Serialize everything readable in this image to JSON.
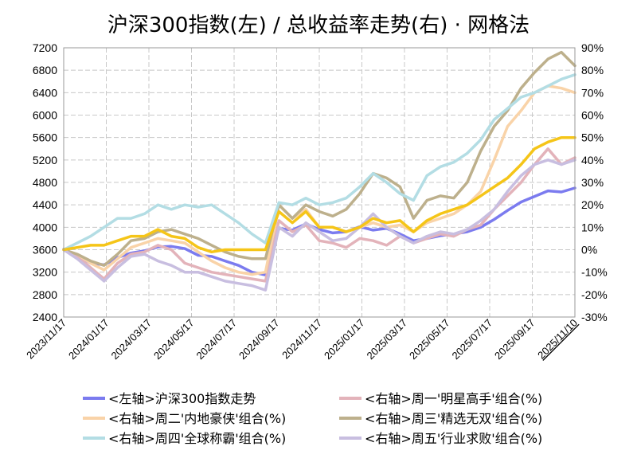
{
  "chart_data": {
    "type": "line",
    "title": "沪深300指数(左)  /  总收益率走势(右) · 网格法",
    "grid": true,
    "legend_placement": "bottom",
    "left_axis": {
      "ylim": [
        2400,
        7200
      ],
      "ticks": [
        "7200",
        "6800",
        "6400",
        "6000",
        "5600",
        "5200",
        "4800",
        "4400",
        "4000",
        "3600",
        "3200",
        "2800",
        "2400"
      ]
    },
    "right_axis": {
      "ylim": [
        -30,
        90
      ],
      "unit": "%",
      "ticks": [
        "90%",
        "80%",
        "70%",
        "60%",
        "50%",
        "40%",
        "30%",
        "20%",
        "10%",
        "0%",
        "-10%",
        "-20%",
        "-30%"
      ],
      "negative_tick_color": "#00cc00"
    },
    "x_ticks": [
      "2023/11/17",
      "2024/01/17",
      "2024/03/17",
      "2024/05/17",
      "2024/07/17",
      "2024/09/17",
      "2024/11/17",
      "2025/01/17",
      "2025/03/17",
      "2025/05/17",
      "2025/07/17",
      "2025/09/17",
      "2025/11/10"
    ],
    "x_last_tick_color": "#ff0000",
    "series": [
      {
        "name": "<左轴>沪深300指数走势",
        "axis": "left",
        "color": "#7b7bef",
        "values": [
          3610,
          3500,
          3360,
          3330,
          3460,
          3540,
          3580,
          3650,
          3660,
          3620,
          3500,
          3480,
          3400,
          3320,
          3200,
          3150,
          3980,
          3950,
          4060,
          3960,
          3900,
          3920,
          4010,
          3950,
          3980,
          3880,
          3760,
          3800,
          3850,
          3880,
          3920,
          4000,
          4140,
          4300,
          4450,
          4550,
          4650,
          4630,
          4700
        ]
      },
      {
        "name": "<右轴>周一'明星高手'组合(%)",
        "axis": "right",
        "color": "#e3b3ba",
        "values": [
          0,
          -3,
          -8,
          -13,
          -6,
          -2,
          -1,
          2,
          0,
          -6,
          -8,
          -10,
          -11,
          -12,
          -13,
          -14,
          13,
          8,
          11,
          4,
          3,
          1,
          5,
          4,
          2,
          6,
          3,
          5,
          7,
          6,
          9,
          11,
          18,
          24,
          30,
          38,
          45,
          38,
          41
        ]
      },
      {
        "name": "<右轴>周二'内地豪侠'组合(%)",
        "axis": "right",
        "color": "#f9d3a8",
        "values": [
          0,
          -2,
          -6,
          -9,
          -4,
          1,
          3,
          5,
          4,
          3,
          -1,
          -5,
          -8,
          -10,
          -11,
          -10,
          20,
          14,
          18,
          10,
          10,
          8,
          10,
          12,
          10,
          11,
          8,
          12,
          14,
          16,
          20,
          26,
          40,
          55,
          62,
          70,
          73,
          72,
          70
        ]
      },
      {
        "name": "<右轴>周三'精选无双'组合(%)",
        "axis": "right",
        "color": "#bdb08c",
        "values": [
          0,
          -2,
          -5,
          -7,
          -2,
          4,
          5,
          8,
          9,
          7,
          5,
          2,
          -1,
          -3,
          -4,
          -4,
          20,
          14,
          20,
          17,
          15,
          18,
          25,
          34,
          32,
          28,
          14,
          22,
          24,
          23,
          30,
          44,
          55,
          62,
          72,
          79,
          85,
          88,
          82
        ]
      },
      {
        "name": "<右轴>周四'全球称霸'组合(%)",
        "axis": "right",
        "color": "#b3dde4",
        "values": [
          0,
          3,
          6,
          10,
          14,
          14,
          16,
          20,
          18,
          20,
          19,
          20,
          16,
          12,
          7,
          3,
          21,
          20,
          23,
          20,
          21,
          23,
          28,
          34,
          30,
          25,
          22,
          33,
          37,
          39,
          43,
          49,
          58,
          63,
          68,
          70,
          73,
          76,
          78
        ]
      },
      {
        "name": "<右轴>周五'行业求败'组合(%)",
        "axis": "right",
        "color": "#c8bee0",
        "values": [
          0,
          -4,
          -9,
          -14,
          -8,
          -3,
          -2,
          -5,
          -7,
          -10,
          -10,
          -12,
          -14,
          -15,
          -16,
          -18,
          10,
          6,
          12,
          8,
          4,
          5,
          10,
          16,
          10,
          6,
          3,
          6,
          8,
          7,
          9,
          13,
          18,
          26,
          33,
          38,
          40,
          38,
          40
        ]
      },
      {
        "name": "<右轴>周一'明星高手'组合(%)",
        "axis": "right",
        "legend": false,
        "color": "#f5c518",
        "values": [
          0,
          1,
          2,
          2,
          4,
          6,
          6,
          9,
          6,
          5,
          1,
          -1,
          0,
          0,
          0,
          0,
          17,
          12,
          17,
          10,
          10,
          8,
          10,
          14,
          12,
          13,
          8,
          13,
          16,
          18,
          20,
          24,
          28,
          32,
          38,
          45,
          48,
          50,
          50
        ]
      }
    ]
  }
}
